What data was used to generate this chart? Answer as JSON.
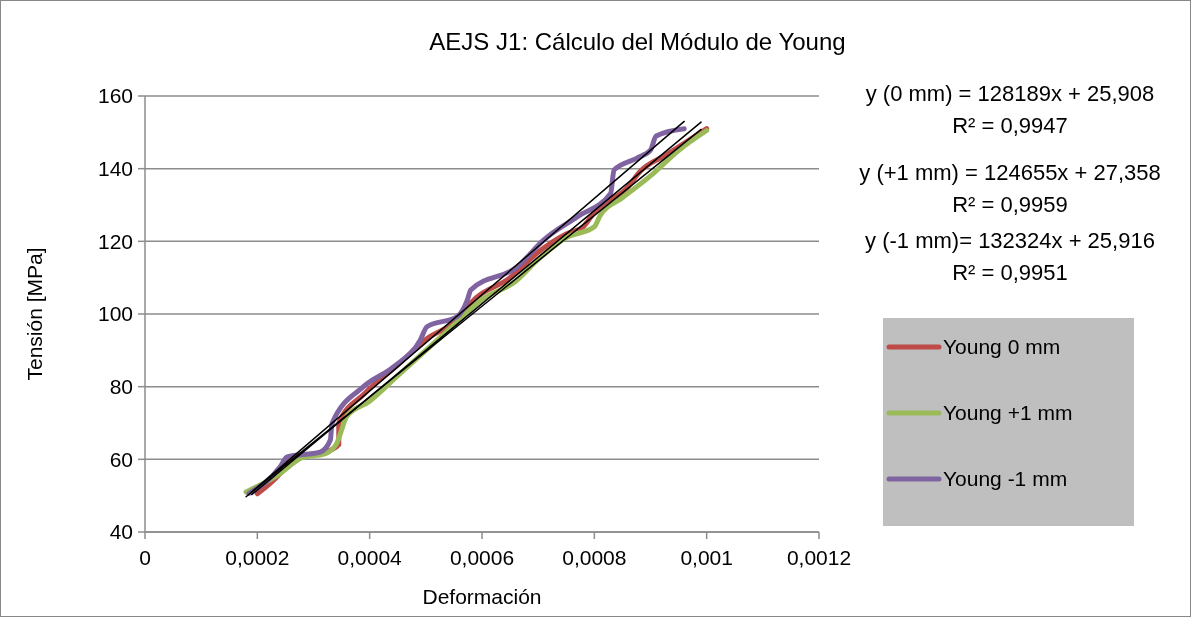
{
  "chart_data": {
    "type": "line",
    "title": "AEJS J1: Cálculo del Módulo de Young",
    "xlabel": "Deformación",
    "ylabel": "Tensión [MPa]",
    "xlim": [
      0,
      0.0012
    ],
    "xticks": [
      0,
      {
        "value": 0.0002,
        "label": "0,0002"
      },
      {
        "value": 0.0004,
        "label": "0,0004"
      },
      {
        "value": 0.0006,
        "label": "0,0006"
      },
      {
        "value": 0.0008,
        "label": "0,0008"
      },
      {
        "value": 0.001,
        "label": "0,001"
      },
      {
        "value": 0.0012,
        "label": "0,0012"
      }
    ],
    "ylim": [
      40,
      160
    ],
    "yticks": [
      40,
      60,
      80,
      100,
      120,
      140,
      160
    ],
    "grid": "y",
    "legend": "right",
    "marker": "none",
    "line_style": "solid",
    "annotations": [
      "y (0 mm) = 128189x + 25,908",
      "R² = 0,9947",
      "y (+1 mm) = 124655x + 27,358",
      "R² = 0,9959",
      "y (-1 mm)= 132324x + 25,916",
      "R² = 0,9951"
    ],
    "series": [
      {
        "name": "Young 0 mm",
        "color": "#be4b48",
        "x": [
          0.0002,
          0.00024,
          0.00026,
          0.0003,
          0.00033,
          0.000345,
          0.000345,
          0.00039,
          0.00045,
          0.0005,
          0.00056,
          0.00058,
          0.00065,
          0.0007,
          0.00075,
          0.00078,
          0.0008,
          0.00086,
          0.00088,
          0.00093,
          0.001
        ],
        "values": [
          50.5,
          56,
          60,
          61.5,
          62.5,
          64,
          70,
          78,
          86,
          93,
          99,
          103,
          110,
          117,
          122,
          124,
          128,
          135,
          139,
          144,
          151
        ]
      },
      {
        "name": "Young +1 mm",
        "color": "#9bbb59",
        "x": [
          0.00018,
          0.00024,
          0.00028,
          0.00032,
          0.00034,
          0.00036,
          0.0004,
          0.00045,
          0.0005,
          0.00055,
          0.0006,
          0.00066,
          0.0007,
          0.00075,
          0.0008,
          0.00081,
          0.00085,
          0.0009,
          0.00095,
          0.001
        ],
        "values": [
          51,
          56,
          60.5,
          61.5,
          64,
          72,
          76,
          83,
          90,
          97,
          104,
          109,
          115,
          121,
          124,
          127,
          132,
          138,
          145,
          150.5
        ]
      },
      {
        "name": "Young -1 mm",
        "color": "#8064a2",
        "x": [
          0.000185,
          0.000241,
          0.000253,
          0.000312,
          0.00033,
          0.000333,
          0.000389,
          0.000443,
          0.00049,
          0.000502,
          0.000556,
          0.000574,
          0.00058,
          0.000663,
          0.00071,
          0.00077,
          0.000829,
          0.000835,
          0.000876,
          0.0009,
          0.00091,
          0.00096
        ],
        "values": [
          50.6,
          58,
          60.7,
          62,
          65.3,
          69.9,
          80,
          85.5,
          92.8,
          96.5,
          99.3,
          103.9,
          106.6,
          113,
          120.4,
          126.8,
          133.2,
          139.6,
          142.9,
          145.1,
          149,
          151
        ]
      },
      {
        "type": "line",
        "color": "#000000",
        "x": [
          0.00019,
          0.00099
        ],
        "values": [
          50.3,
          152.8
        ]
      },
      {
        "type": "line",
        "color": "#000000",
        "x": [
          0.00019,
          0.00099
        ],
        "values": [
          51,
          150.8
        ]
      },
      {
        "type": "line",
        "color": "#000000",
        "x": [
          0.00018,
          0.00096
        ],
        "values": [
          49.7,
          153
        ]
      }
    ]
  }
}
